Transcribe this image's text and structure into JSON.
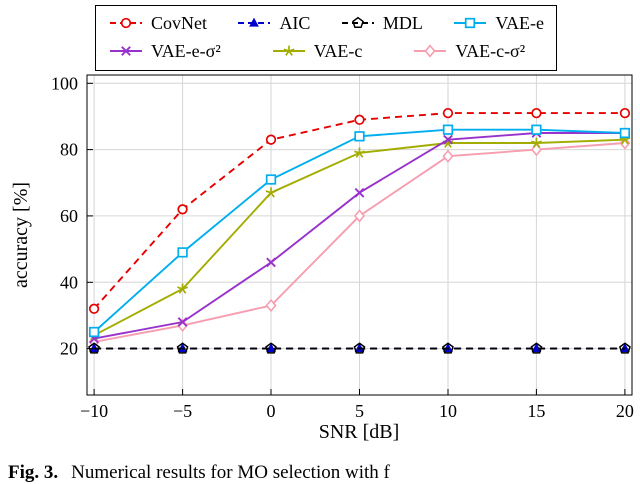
{
  "figure": {
    "caption_label": "Fig. 3.",
    "caption_text": "Numerical results for MO selection with f"
  },
  "chart_data": {
    "type": "line",
    "title": "",
    "xlabel": "SNR [dB]",
    "ylabel": "accuracy [%]",
    "xlim": [
      -10.4,
      20.4
    ],
    "ylim": [
      6,
      102.5
    ],
    "xticks": [
      -10,
      -5,
      0,
      5,
      10,
      15,
      20
    ],
    "yticks": [
      20,
      40,
      60,
      80,
      100
    ],
    "grid": true,
    "legend_position": "top",
    "x": [
      -10,
      -5,
      0,
      5,
      10,
      15,
      20
    ],
    "series": [
      {
        "name": "CovNet",
        "values": [
          32,
          62,
          83,
          89,
          91,
          91,
          91
        ],
        "color": "#e60000",
        "dash": "dashed",
        "marker": "circle"
      },
      {
        "name": "AIC",
        "values": [
          20,
          20,
          20,
          20,
          20,
          20,
          20
        ],
        "color": "#0000cd",
        "dash": "dashed",
        "marker": "triangle"
      },
      {
        "name": "MDL",
        "values": [
          20,
          20,
          20,
          20,
          20,
          20,
          20
        ],
        "color": "#000000",
        "dash": "dashed",
        "marker": "pentagon"
      },
      {
        "name": "VAE-e",
        "values": [
          25,
          49,
          71,
          84,
          86,
          86,
          85
        ],
        "color": "#00aeef",
        "dash": "solid",
        "marker": "square"
      },
      {
        "name": "VAE-e-σ²",
        "values": [
          23,
          28,
          46,
          67,
          83,
          85,
          85
        ],
        "color": "#9932cc",
        "dash": "solid",
        "marker": "x"
      },
      {
        "name": "VAE-c",
        "values": [
          24,
          38,
          67,
          79,
          82,
          82,
          83
        ],
        "color": "#a2ad00",
        "dash": "solid",
        "marker": "star"
      },
      {
        "name": "VAE-c-σ²",
        "values": [
          22,
          27,
          33,
          60,
          78,
          80,
          82
        ],
        "color": "#f79db0",
        "dash": "solid",
        "marker": "diamond"
      }
    ],
    "legend_rows": [
      [
        "CovNet",
        "AIC",
        "MDL",
        "VAE-e"
      ],
      [
        "VAE-e-σ²",
        "VAE-c",
        "VAE-c-σ²"
      ]
    ]
  }
}
